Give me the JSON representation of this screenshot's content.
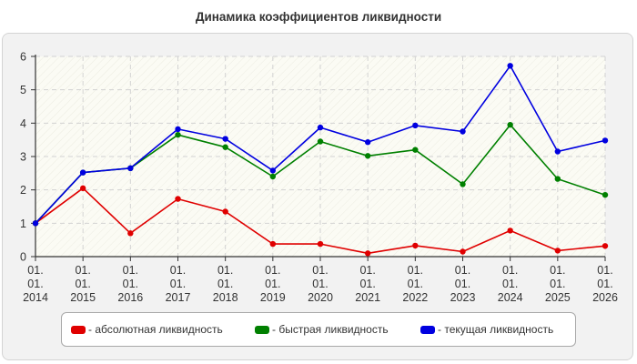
{
  "chart_data": {
    "type": "line",
    "title": "Динамика коэффициентов ликвидности",
    "x_labels": [
      [
        "01.",
        "01.",
        "2014"
      ],
      [
        "01.",
        "01.",
        "2015"
      ],
      [
        "01.",
        "01.",
        "2016"
      ],
      [
        "01.",
        "01.",
        "2017"
      ],
      [
        "01.",
        "01.",
        "2018"
      ],
      [
        "01.",
        "01.",
        "2019"
      ],
      [
        "01.",
        "01.",
        "2020"
      ],
      [
        "01.",
        "01.",
        "2021"
      ],
      [
        "01.",
        "01.",
        "2022"
      ],
      [
        "01.",
        "01.",
        "2023"
      ],
      [
        "01.",
        "01.",
        "2024"
      ],
      [
        "01.",
        "01.",
        "2025"
      ],
      [
        "01.",
        "01.",
        "2026"
      ]
    ],
    "series": [
      {
        "name": "- абсолютная ликвидность",
        "color": "#e00000",
        "values": [
          1.0,
          2.05,
          0.7,
          1.73,
          1.35,
          0.38,
          0.38,
          0.1,
          0.33,
          0.15,
          0.78,
          0.18,
          0.32
        ]
      },
      {
        "name": "- быстрая ликвидность",
        "color": "#008000",
        "values": [
          1.0,
          2.52,
          2.65,
          3.65,
          3.28,
          2.4,
          3.45,
          3.02,
          3.2,
          2.17,
          3.95,
          2.33,
          1.85
        ]
      },
      {
        "name": "- текущая ликвидность",
        "color": "#0000e0",
        "values": [
          1.0,
          2.52,
          2.65,
          3.82,
          3.53,
          2.58,
          3.87,
          3.43,
          3.93,
          3.75,
          5.72,
          3.15,
          3.48
        ]
      }
    ],
    "ylim": [
      0,
      6
    ],
    "yticks": [
      0,
      1,
      2,
      3,
      4,
      5,
      6
    ],
    "grid": true,
    "legend_position": "bottom"
  }
}
